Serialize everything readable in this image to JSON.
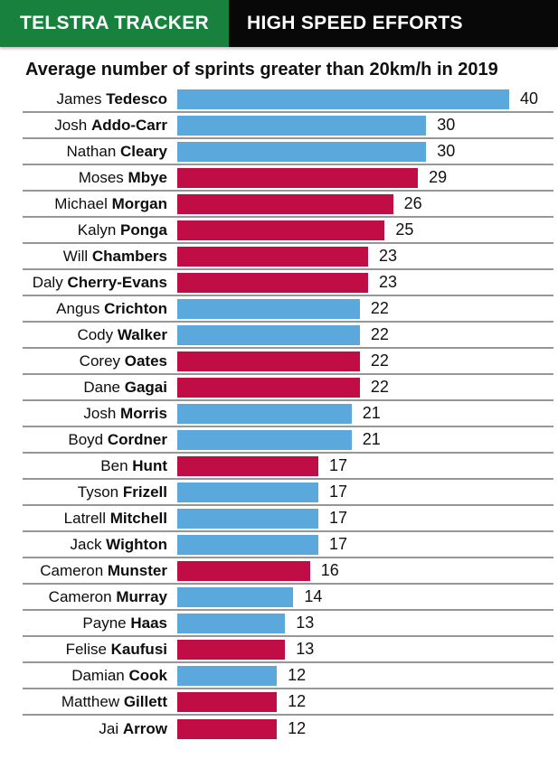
{
  "header": {
    "brand": "TELSTRA TRACKER",
    "topic": "HIGH SPEED EFFORTS"
  },
  "colors": {
    "green": "#17813d",
    "black": "#080808",
    "blue": "#5aa8dc",
    "crimson": "#c00d45"
  },
  "chart_data": {
    "type": "bar",
    "orientation": "horizontal",
    "title": "Average number of sprints greater than 20km/h in 2019",
    "xlim": [
      0,
      40
    ],
    "grid": false,
    "legend": "none",
    "value_labels": "end-of-bar",
    "players": [
      {
        "first": "James",
        "last": "Tedesco",
        "value": 40,
        "color": "blue"
      },
      {
        "first": "Josh",
        "last": "Addo-Carr",
        "value": 30,
        "color": "blue"
      },
      {
        "first": "Nathan",
        "last": "Cleary",
        "value": 30,
        "color": "blue"
      },
      {
        "first": "Moses",
        "last": "Mbye",
        "value": 29,
        "color": "crimson"
      },
      {
        "first": "Michael",
        "last": "Morgan",
        "value": 26,
        "color": "crimson"
      },
      {
        "first": "Kalyn",
        "last": "Ponga",
        "value": 25,
        "color": "crimson"
      },
      {
        "first": "Will",
        "last": "Chambers",
        "value": 23,
        "color": "crimson"
      },
      {
        "first": "Daly",
        "last": "Cherry-Evans",
        "value": 23,
        "color": "crimson"
      },
      {
        "first": "Angus",
        "last": "Crichton",
        "value": 22,
        "color": "blue"
      },
      {
        "first": "Cody",
        "last": "Walker",
        "value": 22,
        "color": "blue"
      },
      {
        "first": "Corey",
        "last": "Oates",
        "value": 22,
        "color": "crimson"
      },
      {
        "first": "Dane",
        "last": "Gagai",
        "value": 22,
        "color": "crimson"
      },
      {
        "first": "Josh",
        "last": "Morris",
        "value": 21,
        "color": "blue"
      },
      {
        "first": "Boyd",
        "last": "Cordner",
        "value": 21,
        "color": "blue"
      },
      {
        "first": "Ben",
        "last": "Hunt",
        "value": 17,
        "color": "crimson"
      },
      {
        "first": "Tyson",
        "last": "Frizell",
        "value": 17,
        "color": "blue"
      },
      {
        "first": "Latrell",
        "last": "Mitchell",
        "value": 17,
        "color": "blue"
      },
      {
        "first": "Jack",
        "last": "Wighton",
        "value": 17,
        "color": "blue"
      },
      {
        "first": "Cameron",
        "last": "Munster",
        "value": 16,
        "color": "crimson"
      },
      {
        "first": "Cameron",
        "last": "Murray",
        "value": 14,
        "color": "blue"
      },
      {
        "first": "Payne",
        "last": "Haas",
        "value": 13,
        "color": "blue"
      },
      {
        "first": "Felise",
        "last": "Kaufusi",
        "value": 13,
        "color": "crimson"
      },
      {
        "first": "Damian",
        "last": "Cook",
        "value": 12,
        "color": "blue"
      },
      {
        "first": "Matthew",
        "last": "Gillett",
        "value": 12,
        "color": "crimson"
      },
      {
        "first": "Jai",
        "last": "Arrow",
        "value": 12,
        "color": "crimson"
      }
    ]
  }
}
